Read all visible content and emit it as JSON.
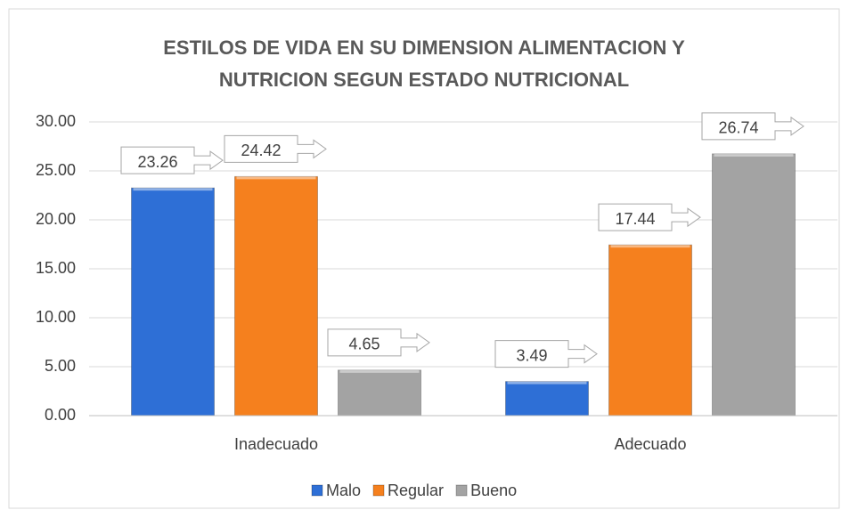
{
  "chart_data": {
    "type": "bar",
    "title": "ESTILOS DE VIDA EN SU DIMENSION ALIMENTACION Y NUTRICION SEGUN ESTADO NUTRICIONAL",
    "categories": [
      "Inadecuado",
      "Adecuado"
    ],
    "series": [
      {
        "name": "Malo",
        "color": "#2e6fd6",
        "values": [
          23.26,
          3.49
        ]
      },
      {
        "name": "Regular",
        "color": "#f5801e",
        "values": [
          24.42,
          17.44
        ]
      },
      {
        "name": "Bueno",
        "color": "#a3a3a3",
        "values": [
          4.65,
          26.74
        ]
      }
    ],
    "ylim": [
      0,
      30
    ],
    "yticks": [
      {
        "value": 0,
        "label": "0.00"
      },
      {
        "value": 5,
        "label": "5.00"
      },
      {
        "value": 10,
        "label": "10.00"
      },
      {
        "value": 15,
        "label": "15.00"
      },
      {
        "value": 20,
        "label": "20.00"
      },
      {
        "value": 25,
        "label": "25.00"
      },
      {
        "value": 30,
        "label": "30.00"
      }
    ],
    "grid": true,
    "legend": "bottom"
  }
}
